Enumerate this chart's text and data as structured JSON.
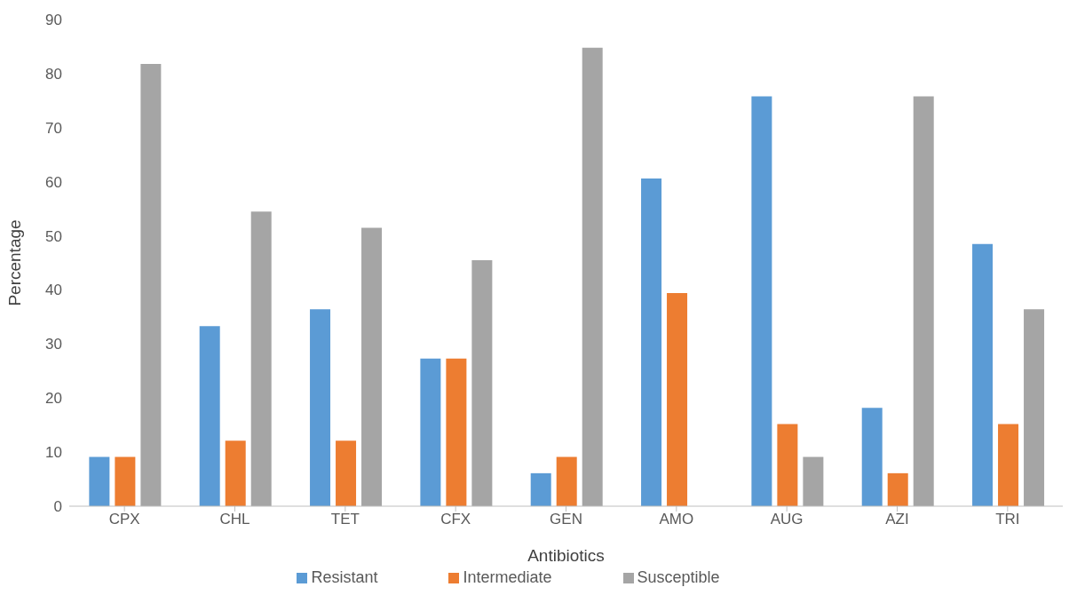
{
  "chart_data": {
    "type": "bar",
    "xlabel": "Antibiotics",
    "ylabel": "Percentage",
    "categories": [
      "CPX",
      "CHL",
      "TET",
      "CFX",
      "GEN",
      "AMO",
      "AUG",
      "AZI",
      "TRI"
    ],
    "series": [
      {
        "name": "Resistant",
        "color": "#5b9bd5",
        "values": [
          9.1,
          33.3,
          36.4,
          27.3,
          6.1,
          60.6,
          75.8,
          18.2,
          48.5
        ]
      },
      {
        "name": "Intermediate",
        "color": "#ed7d31",
        "values": [
          9.1,
          12.1,
          12.1,
          27.3,
          9.1,
          39.4,
          15.2,
          6.1,
          15.2
        ]
      },
      {
        "name": "Susceptible",
        "color": "#a5a5a5",
        "values": [
          81.8,
          54.5,
          51.5,
          45.5,
          84.8,
          0,
          9.1,
          75.8,
          36.4
        ]
      }
    ],
    "ylim": [
      0,
      90
    ],
    "yticks": [
      0,
      10,
      20,
      30,
      40,
      50,
      60,
      70,
      80,
      90
    ],
    "grid": false,
    "legend": "bottom"
  }
}
